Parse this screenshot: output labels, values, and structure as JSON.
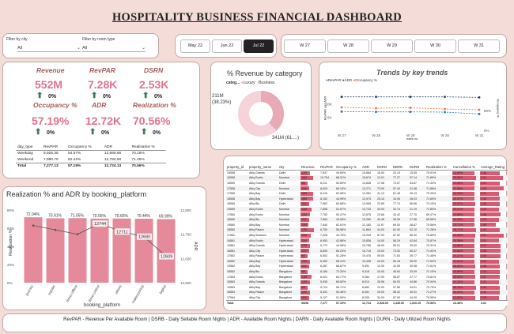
{
  "title": "HOSPITALITY BUSINESS FINANCIAL DASHBOARD",
  "filters": [
    {
      "label": "Filter by city",
      "value": "All"
    },
    {
      "label": "Filter by room type",
      "value": "All"
    }
  ],
  "months": [
    "May 22",
    "Jun 22",
    "Jul 22"
  ],
  "selected_month": "Jul 22",
  "weeks": [
    "W 27",
    "W 28",
    "W 29",
    "W 30",
    "W 31"
  ],
  "kpis": {
    "revenue": {
      "label": "Revenue",
      "value": "552M"
    },
    "revpar": {
      "label": "RevPAR",
      "value": "7.28K"
    },
    "dsrn": {
      "label": "DSRN",
      "value": "2.53K"
    },
    "occupancy": {
      "label": "Occupancy %",
      "value": "57.19%"
    },
    "adr": {
      "label": "ADR",
      "value": "12.72K"
    },
    "realization": {
      "label": "Realization %",
      "value": "70.56%"
    }
  },
  "small_table": {
    "headers": [
      "day_type",
      "RevPAR",
      "Occupancy %",
      "ADR",
      "Realization %"
    ],
    "rows": [
      [
        "Weekday",
        "6,925.35",
        "54.57%",
        "12,669.66",
        "70.16%"
      ],
      [
        "Weekend",
        "7,980.70",
        "62.42%",
        "12,784.50",
        "71.25%"
      ],
      [
        "Total",
        "7,277.13",
        "57.19%",
        "12,724.13",
        "70.56%"
      ]
    ]
  },
  "donut": {
    "title": "% Revenue by category",
    "legend_label": "categ...",
    "legend": [
      "Luxury",
      "Business"
    ],
    "label1": "211M",
    "label1b": "(38.23%)",
    "label2": "341M (61....)",
    "colors": [
      "#e9aab7",
      "#f6d3da"
    ]
  },
  "trends": {
    "title": "Trends by key trends",
    "legend": [
      "RevPAR",
      "ADR",
      "Occupancy %"
    ],
    "colors": [
      "#1f77b4",
      "#1f3b6e",
      "#e9703a"
    ],
    "xlabel": "week no",
    "ylabel_left": "RevPAR and ADR",
    "ylabel_right": "Occupancy %",
    "y_ticks_left": [
      "10K",
      "5K"
    ],
    "y_ticks_right": [
      "50%",
      "0%"
    ]
  },
  "chart_data": [
    {
      "type": "bar",
      "title": "Realization % and ADR by booking_platform",
      "xlabel": "booking_platform",
      "ylabel": "Realization %",
      "ylabel_right": "ADR",
      "categories": [
        "journey",
        "tripster",
        "direct offline",
        "direct online",
        "others",
        "makeyourtrip",
        "logtrip"
      ],
      "series": [
        {
          "name": "Realization %",
          "values": [
            72.04,
            70.91,
            71.05,
            70.55,
            70.65,
            70.44,
            69.99
          ]
        },
        {
          "name": "ADR",
          "values": [
            12736,
            12718,
            12700,
            12744,
            12711,
            12690,
            12609
          ]
        }
      ],
      "bar_labels": [
        "72.04%",
        "70.91%",
        "71.05%",
        "70.55%",
        "70.65%",
        "70.44%",
        "69.99%"
      ],
      "adr_labels": [
        "12744",
        "12711",
        "12690",
        "12609"
      ],
      "y_ticks": [
        "80%",
        "60%",
        "40%",
        "20%",
        "0%"
      ],
      "y_ticks_right": [
        "12,800",
        "12,700",
        "12,600",
        "12,500"
      ]
    },
    {
      "type": "line",
      "title": "Trends by key trends",
      "x": [
        "W 27",
        "W 28",
        "W 29",
        "W 30",
        "W 31"
      ],
      "series": [
        {
          "name": "RevPAR",
          "values": [
            7100,
            7000,
            7000,
            6900,
            6200
          ]
        },
        {
          "name": "ADR",
          "values": [
            12700,
            12700,
            12700,
            12700,
            12500
          ]
        },
        {
          "name": "Occupancy %",
          "values": [
            58,
            56,
            57,
            54,
            52
          ]
        }
      ]
    }
  ],
  "table": {
    "headers": [
      "property_id",
      "property_name",
      "city",
      "Revenue",
      "RevPAR",
      "Occupancy %",
      "ADR",
      "DSRN",
      "DBRN",
      "DURN",
      "Realization %",
      "Cancellation %",
      "Average_Rating"
    ],
    "rows": [
      [
        "19558",
        "Atliq Grands",
        "Delhi",
        "12M",
        "7,837",
        "49.69%",
        "15,684",
        "16.00",
        "23.10",
        "15.55",
        "70.91%",
        "24.69%",
        "3.36"
      ],
      [
        "16558",
        "Atliq Exotic",
        "Mumbai",
        "16M",
        "10,704",
        "68.31%",
        "15,674",
        "12.91",
        "77.27",
        "57.14",
        "71.89%",
        "25.85%",
        "3.94"
      ],
      [
        "16559",
        "Atliq Grands",
        "Delhi",
        "9M",
        "8,211",
        "50.69%",
        "14,848",
        "17.08",
        "73.57",
        "54.87",
        "71.43%",
        "24.35%",
        "3.41"
      ],
      [
        "17558",
        "Atliq City",
        "Mumbai",
        "11M",
        "8,629",
        "69.10%",
        "13,271",
        "73.90",
        "57.40",
        "41.98",
        "71.88%",
        "24.58%",
        "4.03"
      ],
      [
        "17559",
        "Atliq Bay",
        "Delhi",
        "16M",
        "8,216",
        "63.56%",
        "12,981",
        "31.13",
        "61.48",
        "45.13",
        "70.33%",
        "24.33%",
        "3.21"
      ],
      [
        "18558",
        "Atliq Bay",
        "Hyderabad",
        "16M",
        "8,152",
        "44.99%",
        "12,974",
        "25.10",
        "34.95",
        "26.03",
        "71.69%",
        "24.37%",
        "3.45"
      ],
      [
        "18559",
        "Atliq Blu",
        "Delhi",
        "11M",
        "7,962",
        "60.66%",
        "12,909",
        "22.89",
        "77.74",
        "56.96",
        "74.10%",
        "25.57%",
        "3.35"
      ],
      [
        "19559",
        "Atliq Exotic",
        "Mumbai",
        "14M",
        "7,858",
        "51.67%",
        "12,733",
        "33.00",
        "32.74",
        "21.19",
        "71.80%",
        "24.31%",
        "3.29"
      ],
      [
        "17560",
        "Atliq Exotic",
        "Mumbai",
        "12M",
        "7,750",
        "50.47%",
        "12,675",
        "23.68",
        "33.42",
        "27.70",
        "69.47%",
        "24.66%",
        "3.48"
      ],
      [
        "16560",
        "Atliq Blu",
        "Mumbai",
        "11M",
        "7,654",
        "43.96%",
        "12,280",
        "44.45",
        "36.26",
        "27.58",
        "69.55%",
        "24.43%",
        "3.23"
      ],
      [
        "19560",
        "Atliq Bay",
        "Mumbai",
        "10M",
        "7,640",
        "62.61%",
        "12,183",
        "11.97",
        "69.00",
        "48.87",
        "70.58%",
        "24.71%",
        "2.65"
      ],
      [
        "18560",
        "Atliq Palace",
        "Mumbai",
        "17M",
        "6,750",
        "55.98%",
        "11,864",
        "44.00",
        "81.92",
        "52.10",
        "71.28%",
        "25.71%",
        "3.41"
      ],
      [
        "17561",
        "Atliq Seasons",
        "Mumbai",
        "13M",
        "7,328",
        "44.78%",
        "10,949",
        "87.00",
        "87.52",
        "56.30",
        "70.83%",
        "25.06%",
        "4.01"
      ],
      [
        "16561",
        "Atliq Exotic",
        "Hyderabad",
        "11M",
        "6,953",
        "42.86%",
        "10,836",
        "14.00",
        "58.29",
        "42.84",
        "70.87%",
        "24.36%",
        "3.31"
      ],
      [
        "19561",
        "Atliq Grands",
        "Hyderabad",
        "12M",
        "6,772",
        "44.08%",
        "10,756",
        "48.00",
        "55.01",
        "39.00",
        "70.31%",
        "24.66%",
        "3.47"
      ],
      [
        "18561",
        "Atliq City",
        "Hyderabad",
        "11M",
        "6,609",
        "60.23%",
        "10,715",
        "19.00",
        "73.92",
        "50.07",
        "71.92%",
        "24.64%",
        "3.49"
      ],
      [
        "17562",
        "Atliq Palace",
        "Hyderabad",
        "9M",
        "6,502",
        "51.28%",
        "10,476",
        "59.00",
        "71.63",
        "39.77",
        "71.48%",
        "24.21%",
        "3.52"
      ],
      [
        "16562",
        "Atliq Bay",
        "Hyderabad",
        "12M",
        "6,453",
        "58.11%",
        "10,436",
        "24.00",
        "50.18",
        "36.00",
        "71.54%",
        "24.51%",
        "3.23"
      ],
      [
        "19562",
        "Atliq Bay",
        "Hyderabad",
        "11M",
        "6,287",
        "68.67%",
        "9,491",
        "12.00",
        "41.59",
        "30.98",
        "71.61%",
        "25.30%",
        "3.38"
      ],
      [
        "18562",
        "Atliq Blu",
        "Bangalore",
        "9M",
        "6,180",
        "72.30%",
        "9,318",
        "10.00",
        "46.84",
        "33.09",
        "71.19%",
        "24.59%",
        "3.34"
      ],
      [
        "17563",
        "Atliq Exotic",
        "Bangalore",
        "14M",
        "6,021",
        "60.77%",
        "9,284",
        "17.00",
        "58.87",
        "47.77",
        "70.81%",
        "25.54%",
        "3.37"
      ],
      [
        "16563",
        "Atliq Grands",
        "Bangalore",
        "12M",
        "5,935",
        "69.82%",
        "8,914",
        "26.56",
        "84.00",
        "44.86",
        "70.94%",
        "24.32%",
        "3.31"
      ],
      [
        "19563",
        "Atliq Bay",
        "Bangalore",
        "9M",
        "5,724",
        "56.71%",
        "8,683",
        "22.00",
        "57.85",
        "44.51",
        "70.75%",
        "25.70%",
        "3.33"
      ],
      [
        "18563",
        "Atliq Palace",
        "Bangalore",
        "12M",
        "5,431",
        "54.46%",
        "8,451",
        "25.00",
        "58.42",
        "40.51",
        "71.27%",
        "24.42%",
        "3.42"
      ],
      [
        "17564",
        "Atliq City",
        "Bangalore",
        "11M",
        "5,127",
        "51.59%",
        "8,205",
        "34.00",
        "67.00",
        "44.00",
        "70.55%",
        "24.83%",
        "3.28"
      ]
    ],
    "total": [
      "Total",
      "",
      "",
      "552M",
      "7,277",
      "57.19%",
      "12,724",
      "2,528.00",
      "1,445.00",
      "1,020.15",
      "70.56%",
      "24.48%",
      "3.62"
    ]
  },
  "footer": "RevPAR - Revenue Per Available Room | DSRB - Daily Sellable Room Nights | ADR - Available Room Nights | DARN - Daily Available Room Nights | DURN - Daily Utilized Room Nights",
  "colors": {
    "accent": "#d65a71",
    "kpi_value": "#e0738c",
    "kpi_label": "#a35a5a",
    "bg": "#f4dcd8"
  }
}
